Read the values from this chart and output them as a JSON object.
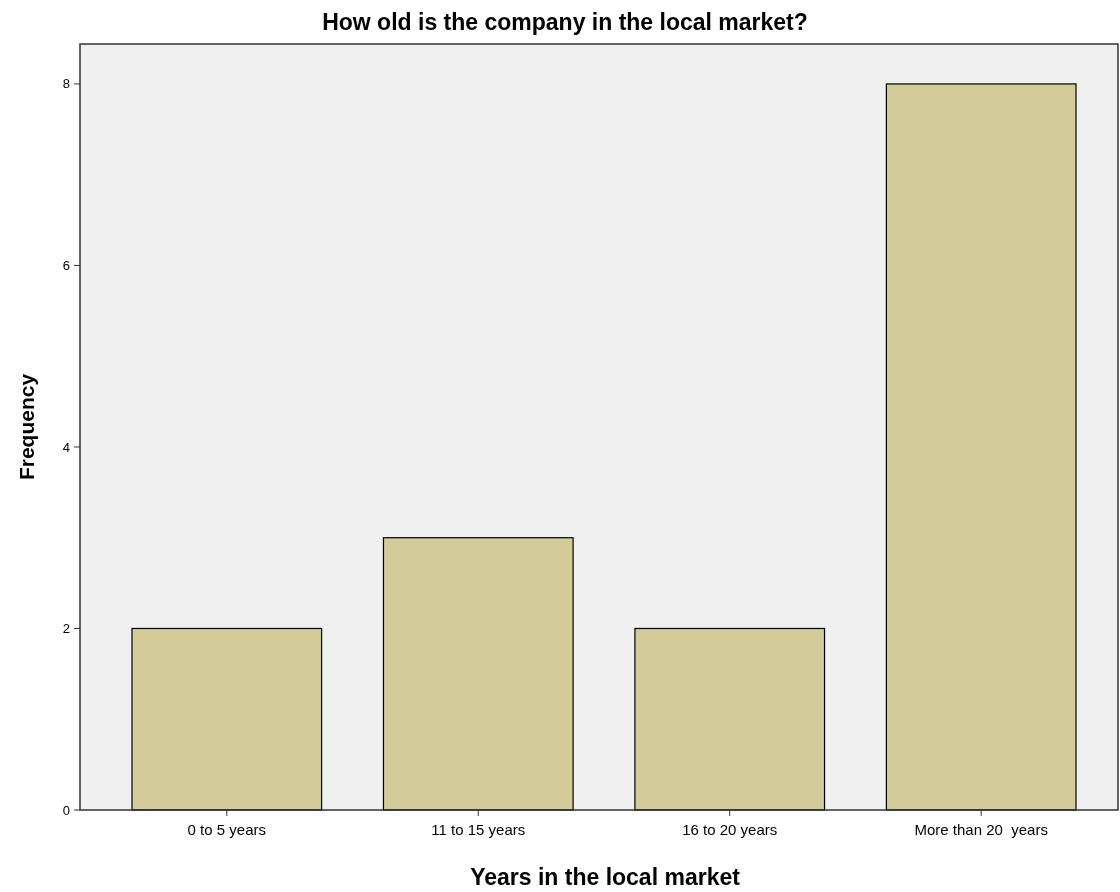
{
  "chart_data": {
    "type": "bar",
    "title": "How old is the company in the local market?",
    "xlabel": "Years in the local market",
    "ylabel": "Frequency",
    "categories": [
      "0 to 5 years",
      "11 to 15 years",
      "16 to 20 years",
      "More than 20  years"
    ],
    "values": [
      2,
      3,
      2,
      8
    ],
    "color": "#d3cb9a",
    "ylim": [
      0,
      8.44
    ],
    "yticks": [
      0,
      2,
      4,
      6,
      8
    ],
    "grid": false
  }
}
